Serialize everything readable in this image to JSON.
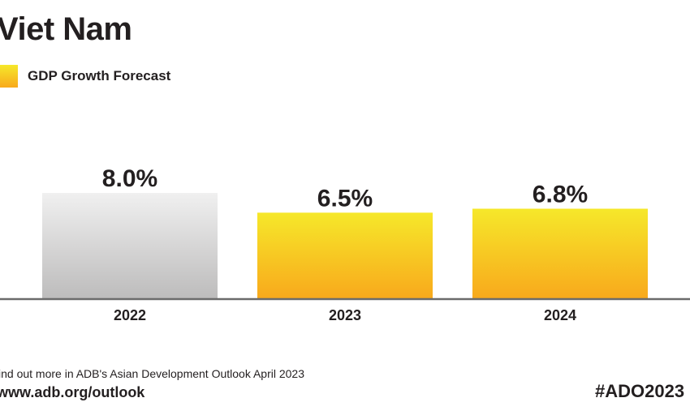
{
  "header": {
    "title": "Viet Nam",
    "legend_label": "GDP Growth Forecast"
  },
  "chart_data": {
    "type": "bar",
    "title": "Viet Nam",
    "categories": [
      "2022",
      "2023",
      "2024"
    ],
    "series": [
      {
        "name": "GDP Growth Forecast",
        "values": [
          8.0,
          6.5,
          6.8
        ],
        "labels": [
          "8.0%",
          "6.5%",
          "6.8%"
        ]
      }
    ],
    "bar_styles": [
      "actual-grey",
      "forecast-yellow",
      "forecast-yellow"
    ],
    "ylim": [
      0,
      8.0
    ],
    "grid": false,
    "legend": "top-left"
  },
  "colors": {
    "grey_top": "#f0f0f0",
    "grey_bottom": "#bdbcbc",
    "yellow_top": "#f6e82a",
    "yellow_bottom": "#f8a91c",
    "axis": "#6b6b6b",
    "text": "#231f20"
  },
  "footer": {
    "note": "ind out more in ADB's Asian Development Outlook April 2023",
    "url": "www.adb.org/outlook",
    "hashtag": "#ADO2023"
  }
}
